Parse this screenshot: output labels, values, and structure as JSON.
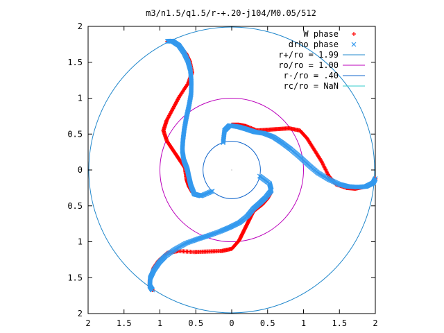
{
  "chart_data": {
    "type": "scatter",
    "title": "m3/n1.5/q1.5/r-+.20-j104/M0.05/512",
    "xlabel": "",
    "ylabel": "",
    "xlim": [
      -2,
      2
    ],
    "ylim": [
      -2,
      2
    ],
    "x_ticks": [
      {
        "value": -2,
        "label": "2"
      },
      {
        "value": -1.5,
        "label": "1.5"
      },
      {
        "value": -1,
        "label": "1"
      },
      {
        "value": -0.5,
        "label": "0.5"
      },
      {
        "value": 0,
        "label": "0"
      },
      {
        "value": 0.5,
        "label": "0.5"
      },
      {
        "value": 1,
        "label": "1"
      },
      {
        "value": 1.5,
        "label": "1.5"
      },
      {
        "value": 2,
        "label": "2"
      }
    ],
    "y_ticks": [
      {
        "value": 2,
        "label": "2"
      },
      {
        "value": 1.5,
        "label": "1.5"
      },
      {
        "value": 1,
        "label": "1"
      },
      {
        "value": 0.5,
        "label": "0.5"
      },
      {
        "value": 0,
        "label": "0"
      },
      {
        "value": -0.5,
        "label": "0.5"
      },
      {
        "value": -1,
        "label": "1"
      },
      {
        "value": -1.5,
        "label": "1.5"
      },
      {
        "value": -2,
        "label": "2"
      }
    ],
    "legend_position": "top-right",
    "grid": false,
    "series": [
      {
        "name": "W phase",
        "marker": "+",
        "color": "#ff0000"
      },
      {
        "name": "drho phase",
        "marker": "x",
        "color": "#3399ee"
      },
      {
        "name": "r+/ro = 1.99",
        "type": "circle",
        "radius": 1.99,
        "color": "#2288cc"
      },
      {
        "name": "ro/ro = 1.00",
        "type": "circle",
        "radius": 1.0,
        "color": "#bb00bb"
      },
      {
        "name": "r-/ro = .40",
        "type": "circle",
        "radius": 0.4,
        "color": "#1166cc"
      },
      {
        "name": "rc/ro = NaN",
        "type": "circle",
        "radius": null,
        "color": "#33cccc"
      }
    ],
    "arm_w": [
      [
        0.0,
        0.63
      ],
      [
        0.1,
        0.63
      ],
      [
        0.2,
        0.61
      ],
      [
        0.35,
        0.55
      ],
      [
        0.5,
        0.56
      ],
      [
        0.65,
        0.57
      ],
      [
        0.8,
        0.58
      ],
      [
        0.95,
        0.55
      ],
      [
        1.05,
        0.44
      ],
      [
        1.15,
        0.28
      ],
      [
        1.25,
        0.12
      ],
      [
        1.35,
        -0.08
      ],
      [
        1.45,
        -0.2
      ],
      [
        1.6,
        -0.25
      ],
      [
        1.72,
        -0.26
      ],
      [
        1.82,
        -0.24
      ],
      [
        1.9,
        -0.22
      ],
      [
        1.97,
        -0.18
      ],
      [
        2.0,
        -0.12
      ]
    ],
    "arm_d": [
      [
        -0.12,
        0.38
      ],
      [
        -0.1,
        0.55
      ],
      [
        -0.03,
        0.62
      ],
      [
        0.1,
        0.6
      ],
      [
        0.2,
        0.57
      ],
      [
        0.32,
        0.53
      ],
      [
        0.45,
        0.51
      ],
      [
        0.58,
        0.46
      ],
      [
        0.7,
        0.38
      ],
      [
        0.82,
        0.29
      ],
      [
        0.95,
        0.18
      ],
      [
        1.07,
        0.07
      ],
      [
        1.2,
        -0.04
      ],
      [
        1.35,
        -0.13
      ],
      [
        1.5,
        -0.2
      ],
      [
        1.62,
        -0.23
      ],
      [
        1.75,
        -0.24
      ],
      [
        1.87,
        -0.23
      ],
      [
        1.97,
        -0.18
      ],
      [
        2.0,
        -0.12
      ]
    ]
  }
}
